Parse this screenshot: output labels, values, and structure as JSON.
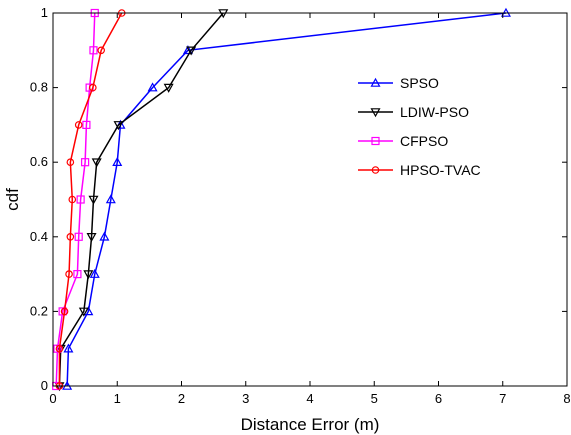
{
  "chart_data": {
    "type": "line",
    "title": "",
    "xlabel": "Distance Error (m)",
    "ylabel": "cdf",
    "xlim": [
      0,
      8
    ],
    "ylim": [
      0,
      1
    ],
    "xticks": [
      "0",
      "1",
      "2",
      "3",
      "4",
      "5",
      "6",
      "7",
      "8"
    ],
    "yticks": [
      "0",
      "0.2",
      "0.4",
      "0.6",
      "0.8",
      "1"
    ],
    "grid": false,
    "legend_position": "right-center",
    "series": [
      {
        "name": "SPSO",
        "color": "#0000ff",
        "marker": "triangle-up",
        "x": [
          0.22,
          0.24,
          0.55,
          0.65,
          0.8,
          0.9,
          1.0,
          1.05,
          1.55,
          2.1,
          7.05
        ],
        "y": [
          0,
          0.1,
          0.2,
          0.3,
          0.4,
          0.5,
          0.6,
          0.7,
          0.8,
          0.9,
          1.0
        ]
      },
      {
        "name": "LDIW-PSO",
        "color": "#000000",
        "marker": "triangle-down",
        "x": [
          0.1,
          0.12,
          0.48,
          0.55,
          0.6,
          0.63,
          0.68,
          1.02,
          1.8,
          2.15,
          2.65
        ],
        "y": [
          0,
          0.1,
          0.2,
          0.3,
          0.4,
          0.5,
          0.6,
          0.7,
          0.8,
          0.9,
          1.0
        ]
      },
      {
        "name": "CFPSO",
        "color": "#ff00ff",
        "marker": "square",
        "x": [
          0.05,
          0.07,
          0.15,
          0.38,
          0.4,
          0.43,
          0.5,
          0.52,
          0.57,
          0.63,
          0.65
        ],
        "y": [
          0,
          0.1,
          0.2,
          0.3,
          0.4,
          0.5,
          0.6,
          0.7,
          0.8,
          0.9,
          1.0
        ]
      },
      {
        "name": "HPSO-TVAC",
        "color": "#ff0000",
        "marker": "circle",
        "x": [
          0.1,
          0.1,
          0.18,
          0.25,
          0.27,
          0.3,
          0.27,
          0.4,
          0.62,
          0.75,
          1.07
        ],
        "y": [
          0,
          0.1,
          0.2,
          0.3,
          0.4,
          0.5,
          0.6,
          0.7,
          0.8,
          0.9,
          1.0
        ]
      }
    ]
  }
}
